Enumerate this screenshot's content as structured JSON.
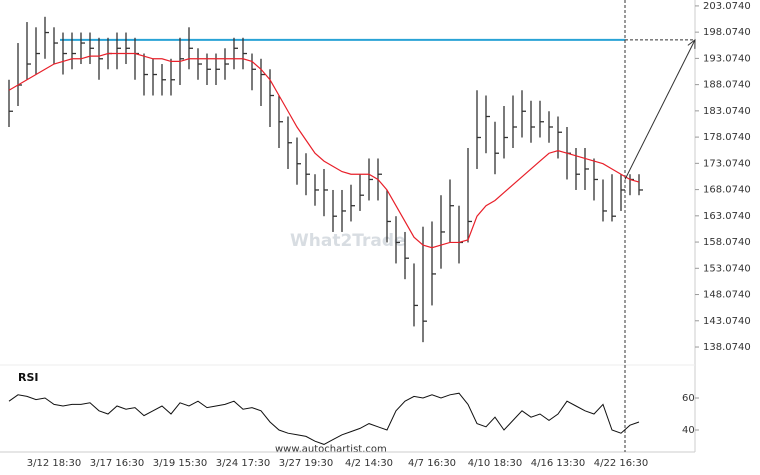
{
  "chart_data": {
    "type": "ohlc",
    "categories": [
      null,
      null,
      null,
      null,
      null,
      "3/12 18:30",
      null,
      null,
      null,
      null,
      null,
      null,
      "3/17 16:30",
      null,
      null,
      null,
      null,
      null,
      null,
      "3/19 15:30",
      null,
      null,
      null,
      null,
      null,
      null,
      "3/24 17:30",
      null,
      null,
      null,
      null,
      null,
      null,
      "3/27 19:30",
      null,
      null,
      null,
      null,
      null,
      null,
      "4/2 14:30",
      null,
      null,
      null,
      null,
      null,
      null,
      "4/7 16:30",
      null,
      null,
      null,
      null,
      null,
      null,
      "4/10 18:30",
      null,
      null,
      null,
      null,
      null,
      null,
      "4/16 13:30",
      null,
      null,
      null,
      null,
      null,
      null,
      "4/22 16:30",
      null,
      null
    ],
    "high": [
      189,
      196,
      200,
      199,
      201,
      199,
      198,
      198,
      198,
      198,
      197,
      197,
      198,
      198,
      197,
      194,
      193,
      192,
      193,
      197,
      199,
      195,
      194,
      194,
      195,
      197,
      197,
      194,
      193,
      191,
      186,
      182,
      178,
      175,
      171,
      172,
      168,
      168,
      169,
      171,
      174,
      174,
      168,
      163,
      160,
      154,
      161,
      162,
      167,
      170,
      165,
      176,
      187,
      186,
      181,
      184,
      186,
      187,
      185,
      185,
      183,
      182,
      180,
      176,
      176,
      174,
      170,
      171,
      171,
      171,
      171
    ],
    "low": [
      180,
      184,
      189,
      190,
      193,
      192,
      190,
      191,
      192,
      192,
      189,
      191,
      191,
      192,
      189,
      186,
      186,
      186,
      186,
      188,
      191,
      189,
      188,
      188,
      189,
      191,
      191,
      187,
      184,
      180,
      176,
      172,
      169,
      167,
      165,
      163,
      160,
      160,
      162,
      164,
      166,
      166,
      158,
      154,
      151,
      142,
      139,
      146,
      153,
      158,
      154,
      158,
      172,
      175,
      171,
      174,
      176,
      178,
      177,
      178,
      177,
      174,
      170,
      168,
      168,
      166,
      162,
      162,
      164,
      167,
      167
    ],
    "close": [
      183,
      188,
      192,
      194,
      198,
      196,
      194,
      194,
      196,
      195,
      193,
      194,
      195,
      195,
      194,
      190,
      190,
      189,
      189,
      193,
      195,
      192,
      191,
      191,
      192,
      195,
      194,
      191,
      190,
      186,
      181,
      177,
      173,
      171,
      168,
      168,
      163,
      164,
      165,
      167,
      170,
      171,
      162,
      158,
      155,
      146,
      143,
      152,
      160,
      165,
      158,
      162,
      178,
      182,
      175,
      178,
      180,
      183,
      180,
      181,
      180,
      179,
      175,
      171,
      172,
      170,
      164,
      163,
      168,
      170,
      168
    ],
    "bar_color": "#333333",
    "ma_values": [
      187,
      188,
      189,
      190,
      191,
      192,
      192.5,
      193,
      193,
      193.5,
      193.5,
      194,
      194,
      194,
      194,
      193.5,
      193,
      193,
      192.5,
      192.5,
      193,
      193,
      193,
      193,
      193,
      193,
      193,
      192.5,
      191,
      189,
      186,
      183,
      180,
      177.5,
      175,
      173.5,
      172.5,
      171.5,
      171,
      171,
      171,
      170,
      168,
      165,
      162,
      159,
      157.5,
      157,
      157.5,
      158,
      158,
      158.5,
      163,
      165,
      166,
      167.5,
      169,
      170.5,
      172,
      173.5,
      175,
      175.5,
      175,
      174.5,
      174,
      173.5,
      173,
      172,
      171,
      170,
      169.5
    ],
    "ma_color": "#e8202a",
    "key_level": 196.6,
    "key_level_color": "#29a3d6",
    "ylim": [
      135.6,
      204.2
    ],
    "yticks": [
      {
        "value": 203.074,
        "label": "203.0740"
      },
      {
        "value": 198.074,
        "label": "198.0740"
      },
      {
        "value": 193.074,
        "label": "193.0740"
      },
      {
        "value": 188.074,
        "label": "188.0740"
      },
      {
        "value": 183.074,
        "label": "183.0740"
      },
      {
        "value": 178.074,
        "label": "178.0740"
      },
      {
        "value": 173.074,
        "label": "173.0740"
      },
      {
        "value": 168.074,
        "label": "168.0740"
      },
      {
        "value": 163.074,
        "label": "163.0740"
      },
      {
        "value": 158.074,
        "label": "158.0740"
      },
      {
        "value": 153.074,
        "label": "153.0740"
      },
      {
        "value": 148.074,
        "label": "148.0740"
      },
      {
        "value": 143.074,
        "label": "143.0740"
      },
      {
        "value": 138.074,
        "label": "138.0740"
      }
    ],
    "watermark": "What2Trade",
    "source": "www.autochartist.com",
    "rsi": {
      "label": "RSI",
      "ylim": [
        31,
        78
      ],
      "yticks": [
        60,
        40
      ],
      "color": "#111111",
      "values": [
        58,
        62,
        61,
        59,
        60,
        56,
        55,
        56,
        56,
        57,
        52,
        50,
        55,
        53,
        54,
        49,
        52,
        55,
        50,
        57,
        55,
        58,
        54,
        55,
        56,
        58,
        53,
        54,
        52,
        45,
        40,
        38,
        37,
        36,
        33,
        31,
        34,
        37,
        39,
        41,
        44,
        42,
        40,
        52,
        58,
        61,
        60,
        62,
        60,
        62,
        63,
        56,
        44,
        42,
        48,
        40,
        46,
        52,
        48,
        50,
        46,
        50,
        58,
        55,
        52,
        50,
        56,
        40,
        38,
        43,
        45
      ]
    }
  }
}
